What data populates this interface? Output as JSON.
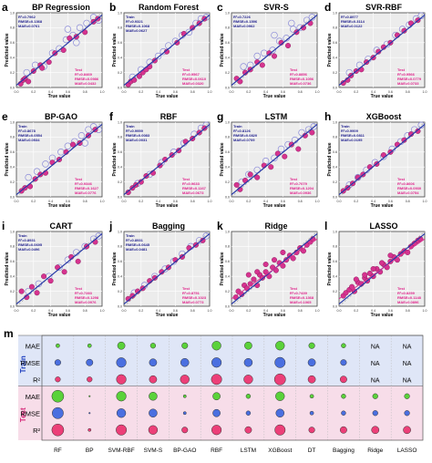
{
  "colors": {
    "test_point": "#d6338f",
    "train_point": "#8c8cd8",
    "fit_line": "#2638a8",
    "train_text": "#1c1c8c",
    "test_text": "#e0208a",
    "panel_bg": "#ececec",
    "bubble_green": "#5ad23a",
    "bubble_blue": "#4a6fe0",
    "bubble_pink": "#ec3f78",
    "train_band": "#dfe6f7",
    "test_band": "#f7dde9",
    "band_label_train": "#1f3fbf",
    "band_label_test": "#d62a7a"
  },
  "panels": [
    {
      "letter": "a",
      "title": "BP Regression",
      "has_train": true,
      "train_stats": [
        "R²=0.7962",
        "RMSE=0.1368",
        "MAE=0.0761"
      ],
      "test_stats": [
        "Test",
        "R²=0.8469",
        "RMSE=0.0986",
        "MAE=0.0432"
      ]
    },
    {
      "letter": "b",
      "title": "Random Forest",
      "has_train": true,
      "train_stats": [
        "Train",
        "R²=0.9321",
        "RMSE=0.1068",
        "MAE=0.0627"
      ],
      "test_stats": [
        "Test",
        "R²=0.9567",
        "RMSE=0.0610",
        "MAE=0.0320"
      ]
    },
    {
      "letter": "c",
      "title": "SVR-S",
      "has_train": true,
      "train_stats": [
        "R²=0.7226",
        "RMSE=0.1596",
        "MAE=0.0962"
      ],
      "test_stats": [
        "Test",
        "R²=0.8856",
        "RMSE=0.1056",
        "MAE=0.0736"
      ]
    },
    {
      "letter": "d",
      "title": "SVR-RBF",
      "has_train": true,
      "train_stats": [
        "R²=0.8977",
        "RMSE=0.3114",
        "MAE=0.0122"
      ],
      "test_stats": [
        "Test",
        "R²=0.9566",
        "RMSE=0.0779",
        "MAE=0.0733"
      ]
    },
    {
      "letter": "e",
      "title": "BP-GAO",
      "has_train": true,
      "train_stats": [
        "Train",
        "R²=0.8678",
        "RMSE=0.0554",
        "MAE=0.0534"
      ],
      "test_stats": [
        "Test",
        "R²=0.9346",
        "RMSE=0.1627",
        "MAE=0.0776"
      ]
    },
    {
      "letter": "f",
      "title": "RBF",
      "has_train": true,
      "train_stats": [
        "Train",
        "R²=0.9959",
        "RMSE=0.0083",
        "MAE=0.0031"
      ],
      "test_stats": [
        "Test",
        "R²=0.9633",
        "RMSE=0.1167",
        "MAE=0.0673"
      ]
    },
    {
      "letter": "g",
      "title": "LSTM",
      "has_train": true,
      "train_stats": [
        "Train",
        "R²=0.8126",
        "RMSE=0.0820",
        "MAE=0.0709"
      ],
      "test_stats": [
        "Test",
        "R²=0.7079",
        "RMSE=0.1204",
        "MAE=0.0936"
      ]
    },
    {
      "letter": "h",
      "title": "XGBoost",
      "has_train": true,
      "train_stats": [
        "Train",
        "R²=0.9909",
        "RMSE=0.0811",
        "MAE=0.0195"
      ],
      "test_stats": [
        "Test",
        "R²=0.8606",
        "RMSE=0.0930",
        "MAE=0.0754"
      ]
    },
    {
      "letter": "i",
      "title": "CART",
      "has_train": true,
      "train_stats": [
        "Train",
        "R²=0.8931",
        "RMSE=0.0695",
        "MAE=0.0496"
      ],
      "test_stats": [
        "Test",
        "R²=0.7283",
        "RMSE=0.1298",
        "MAE=0.0976"
      ]
    },
    {
      "letter": "j",
      "title": "Bagging",
      "has_train": true,
      "train_stats": [
        "Train",
        "R²=0.8931",
        "RMSE=0.0645",
        "MAE=0.0481"
      ],
      "test_stats": [
        "Test",
        "R²=0.8751",
        "RMSE=0.1023",
        "MAE=0.0773"
      ]
    },
    {
      "letter": "k",
      "title": "Ridge",
      "has_train": false,
      "train_stats": [],
      "test_stats": [
        "Test",
        "R²=0.7439",
        "RMSE=0.1368",
        "MAE=0.1065"
      ]
    },
    {
      "letter": "l",
      "title": "LASSO",
      "has_train": false,
      "train_stats": [],
      "test_stats": [
        "Test",
        "R²=0.8259",
        "RMSE=0.1148",
        "MAE=0.0896"
      ]
    }
  ],
  "axes": {
    "xlabel": "True value",
    "ylabel": "Predicted value",
    "xlim": [
      0,
      1
    ],
    "ylim": [
      0,
      1
    ],
    "ticks": [
      "0.0",
      "0.2",
      "0.4",
      "0.6",
      "0.8",
      "1.0"
    ]
  },
  "chart_data": [
    {
      "type": "scatter",
      "id": "a",
      "test": {
        "x": [
          0.05,
          0.08,
          0.1,
          0.14,
          0.2,
          0.28,
          0.3,
          0.38,
          0.45,
          0.55,
          0.62,
          0.7,
          0.8,
          0.9,
          0.95
        ],
        "y": [
          0.05,
          0.1,
          0.12,
          0.08,
          0.22,
          0.3,
          0.26,
          0.34,
          0.46,
          0.5,
          0.66,
          0.68,
          0.74,
          0.88,
          0.92
        ]
      },
      "train": {
        "x": [
          0.12,
          0.22,
          0.32,
          0.42,
          0.5,
          0.58,
          0.66,
          0.74,
          0.82,
          0.9,
          0.96,
          0.6,
          0.7
        ],
        "y": [
          0.2,
          0.3,
          0.28,
          0.46,
          0.52,
          0.64,
          0.7,
          0.8,
          0.86,
          0.94,
          0.9,
          0.78,
          0.6
        ]
      }
    },
    {
      "type": "scatter",
      "id": "b",
      "test": {
        "x": [
          0.05,
          0.08,
          0.12,
          0.18,
          0.22,
          0.26,
          0.3,
          0.36,
          0.5,
          0.62,
          0.7,
          0.8,
          0.88,
          0.94
        ],
        "y": [
          0.04,
          0.08,
          0.1,
          0.15,
          0.2,
          0.24,
          0.28,
          0.36,
          0.48,
          0.6,
          0.72,
          0.8,
          0.86,
          0.92
        ]
      },
      "train": {
        "x": [
          0.1,
          0.2,
          0.3,
          0.4,
          0.46,
          0.52,
          0.6,
          0.68,
          0.76,
          0.84,
          0.9,
          0.96
        ],
        "y": [
          0.14,
          0.24,
          0.34,
          0.42,
          0.48,
          0.56,
          0.62,
          0.7,
          0.74,
          0.86,
          0.92,
          0.94
        ]
      }
    },
    {
      "type": "scatter",
      "id": "c",
      "test": {
        "x": [
          0.06,
          0.1,
          0.16,
          0.22,
          0.3,
          0.36,
          0.44,
          0.5,
          0.58,
          0.66,
          0.76,
          0.84,
          0.92
        ],
        "y": [
          0.12,
          0.08,
          0.2,
          0.24,
          0.34,
          0.3,
          0.46,
          0.42,
          0.6,
          0.56,
          0.74,
          0.8,
          0.86
        ]
      },
      "train": {
        "x": [
          0.14,
          0.22,
          0.3,
          0.38,
          0.48,
          0.56,
          0.64,
          0.72,
          0.8,
          0.88,
          0.94,
          0.5,
          0.7
        ],
        "y": [
          0.28,
          0.3,
          0.42,
          0.46,
          0.5,
          0.62,
          0.66,
          0.78,
          0.8,
          0.9,
          0.94,
          0.7,
          0.86
        ]
      }
    },
    {
      "type": "scatter",
      "id": "d",
      "test": {
        "x": [
          0.05,
          0.1,
          0.14,
          0.2,
          0.26,
          0.32,
          0.4,
          0.46,
          0.52,
          0.6,
          0.68,
          0.76,
          0.84,
          0.92
        ],
        "y": [
          0.06,
          0.1,
          0.16,
          0.22,
          0.24,
          0.34,
          0.4,
          0.48,
          0.54,
          0.6,
          0.7,
          0.76,
          0.86,
          0.9
        ]
      },
      "train": {
        "x": [
          0.12,
          0.24,
          0.34,
          0.44,
          0.56,
          0.66,
          0.74,
          0.82,
          0.9,
          0.96
        ],
        "y": [
          0.2,
          0.3,
          0.38,
          0.5,
          0.58,
          0.7,
          0.78,
          0.84,
          0.92,
          0.96
        ]
      }
    },
    {
      "type": "scatter",
      "id": "e",
      "test": {
        "x": [
          0.06,
          0.1,
          0.16,
          0.22,
          0.28,
          0.34,
          0.42,
          0.5,
          0.58,
          0.66,
          0.74,
          0.84,
          0.92
        ],
        "y": [
          0.08,
          0.12,
          0.14,
          0.24,
          0.3,
          0.32,
          0.46,
          0.5,
          0.6,
          0.7,
          0.72,
          0.82,
          0.9
        ]
      },
      "train": {
        "x": [
          0.14,
          0.24,
          0.34,
          0.42,
          0.52,
          0.6,
          0.68,
          0.76,
          0.84,
          0.9,
          0.96,
          0.8
        ],
        "y": [
          0.26,
          0.34,
          0.44,
          0.52,
          0.6,
          0.68,
          0.74,
          0.82,
          0.9,
          0.94,
          0.9,
          0.72
        ]
      }
    },
    {
      "type": "scatter",
      "id": "f",
      "test": {
        "x": [
          0.05,
          0.1,
          0.14,
          0.2,
          0.26,
          0.34,
          0.42,
          0.48,
          0.56,
          0.64,
          0.72,
          0.8,
          0.88,
          0.94
        ],
        "y": [
          0.06,
          0.12,
          0.16,
          0.2,
          0.28,
          0.32,
          0.42,
          0.5,
          0.56,
          0.62,
          0.74,
          0.78,
          0.86,
          0.92
        ]
      },
      "train": {
        "x": [
          0.16,
          0.3,
          0.44,
          0.58,
          0.7,
          0.82,
          0.9,
          0.96
        ],
        "y": [
          0.18,
          0.3,
          0.46,
          0.6,
          0.72,
          0.84,
          0.92,
          0.96
        ]
      }
    },
    {
      "type": "scatter",
      "id": "g",
      "test": {
        "x": [
          0.06,
          0.1,
          0.16,
          0.22,
          0.3,
          0.38,
          0.46,
          0.54,
          0.62,
          0.7,
          0.78,
          0.86,
          0.94
        ],
        "y": [
          0.16,
          0.1,
          0.22,
          0.3,
          0.26,
          0.42,
          0.4,
          0.58,
          0.54,
          0.7,
          0.64,
          0.82,
          0.86
        ]
      },
      "train": {
        "x": [
          0.12,
          0.2,
          0.3,
          0.4,
          0.5,
          0.58,
          0.66,
          0.74,
          0.82,
          0.9,
          0.96
        ],
        "y": [
          0.2,
          0.3,
          0.36,
          0.48,
          0.52,
          0.64,
          0.7,
          0.76,
          0.86,
          0.9,
          0.94
        ]
      }
    },
    {
      "type": "scatter",
      "id": "h",
      "test": {
        "x": [
          0.05,
          0.1,
          0.16,
          0.22,
          0.28,
          0.36,
          0.44,
          0.52,
          0.6,
          0.68,
          0.76,
          0.84,
          0.92
        ],
        "y": [
          0.08,
          0.12,
          0.18,
          0.26,
          0.3,
          0.4,
          0.44,
          0.56,
          0.6,
          0.7,
          0.76,
          0.84,
          0.88
        ]
      },
      "train": {
        "x": [
          0.12,
          0.22,
          0.32,
          0.42,
          0.52,
          0.62,
          0.72,
          0.8,
          0.88,
          0.96
        ],
        "y": [
          0.16,
          0.26,
          0.36,
          0.46,
          0.54,
          0.64,
          0.74,
          0.82,
          0.9,
          0.96
        ]
      }
    },
    {
      "type": "scatter",
      "id": "i",
      "test": {
        "x": [
          0.06,
          0.12,
          0.18,
          0.24,
          0.32,
          0.4,
          0.48,
          0.56,
          0.64,
          0.72,
          0.82,
          0.92
        ],
        "y": [
          0.2,
          0.12,
          0.26,
          0.18,
          0.4,
          0.34,
          0.52,
          0.46,
          0.66,
          0.6,
          0.8,
          0.86
        ]
      },
      "train": {
        "x": [
          0.14,
          0.26,
          0.38,
          0.5,
          0.6,
          0.7,
          0.8,
          0.9,
          0.96
        ],
        "y": [
          0.2,
          0.3,
          0.4,
          0.52,
          0.62,
          0.72,
          0.8,
          0.9,
          0.94
        ]
      }
    },
    {
      "type": "scatter",
      "id": "j",
      "test": {
        "x": [
          0.05,
          0.1,
          0.16,
          0.22,
          0.3,
          0.36,
          0.44,
          0.52,
          0.6,
          0.68,
          0.76,
          0.84,
          0.92
        ],
        "y": [
          0.1,
          0.14,
          0.2,
          0.24,
          0.34,
          0.38,
          0.46,
          0.52,
          0.62,
          0.66,
          0.78,
          0.82,
          0.88
        ]
      },
      "train": {
        "x": [
          0.12,
          0.24,
          0.36,
          0.48,
          0.58,
          0.68,
          0.78,
          0.88,
          0.96
        ],
        "y": [
          0.18,
          0.28,
          0.4,
          0.5,
          0.6,
          0.7,
          0.8,
          0.88,
          0.94
        ]
      }
    },
    {
      "type": "scatter",
      "id": "k",
      "test": {
        "x": [
          0.05,
          0.08,
          0.12,
          0.15,
          0.18,
          0.22,
          0.26,
          0.3,
          0.33,
          0.36,
          0.4,
          0.44,
          0.48,
          0.52,
          0.56,
          0.6,
          0.64,
          0.68,
          0.72,
          0.76,
          0.8,
          0.84,
          0.88,
          0.92,
          0.95,
          0.2,
          0.4,
          0.6,
          0.3,
          0.5
        ],
        "y": [
          0.12,
          0.2,
          0.16,
          0.28,
          0.24,
          0.3,
          0.36,
          0.28,
          0.42,
          0.38,
          0.46,
          0.4,
          0.52,
          0.48,
          0.58,
          0.54,
          0.62,
          0.68,
          0.64,
          0.72,
          0.78,
          0.74,
          0.82,
          0.86,
          0.9,
          0.42,
          0.56,
          0.72,
          0.46,
          0.62
        ]
      }
    },
    {
      "type": "scatter",
      "id": "l",
      "test": {
        "x": [
          0.05,
          0.08,
          0.12,
          0.15,
          0.18,
          0.22,
          0.26,
          0.3,
          0.33,
          0.36,
          0.4,
          0.44,
          0.48,
          0.52,
          0.56,
          0.6,
          0.64,
          0.68,
          0.72,
          0.76,
          0.8,
          0.84,
          0.88,
          0.92,
          0.95,
          0.2,
          0.4,
          0.6,
          0.3,
          0.5
        ],
        "y": [
          0.14,
          0.18,
          0.22,
          0.26,
          0.2,
          0.32,
          0.3,
          0.38,
          0.34,
          0.44,
          0.4,
          0.5,
          0.46,
          0.56,
          0.52,
          0.6,
          0.66,
          0.62,
          0.7,
          0.74,
          0.72,
          0.8,
          0.84,
          0.88,
          0.9,
          0.36,
          0.5,
          0.68,
          0.42,
          0.58
        ]
      }
    },
    {
      "type": "bubble",
      "id": "m",
      "models": [
        "RF",
        "BP",
        "SVM-RBF",
        "SVM-S",
        "BP-GAO",
        "RBF",
        "LSTM",
        "XGBoost",
        "DT",
        "Bagging",
        "Ridge",
        "LASSO"
      ],
      "groups": [
        {
          "label": "Train",
          "rows": [
            {
              "metric": "MAE",
              "color": "green",
              "sizes": [
                0.25,
                0.25,
                0.5,
                0.35,
                0.4,
                0.6,
                0.5,
                0.6,
                0.4,
                0.3,
                null,
                null
              ]
            },
            {
              "metric": "RMSE",
              "color": "blue",
              "sizes": [
                0.4,
                0.45,
                0.65,
                0.5,
                0.55,
                0.65,
                0.55,
                0.7,
                0.5,
                0.4,
                null,
                null
              ]
            },
            {
              "metric": "R²",
              "color": "pink",
              "sizes": [
                0.35,
                0.35,
                0.65,
                0.5,
                0.6,
                0.7,
                0.6,
                0.75,
                0.5,
                0.45,
                null,
                null
              ]
            }
          ]
        },
        {
          "label": "Test",
          "rows": [
            {
              "metric": "MAE",
              "color": "green",
              "sizes": [
                0.8,
                0.1,
                0.65,
                0.55,
                0.2,
                0.5,
                0.3,
                0.6,
                0.25,
                0.3,
                0.35,
                0.35
              ]
            },
            {
              "metric": "RMSE",
              "color": "blue",
              "sizes": [
                0.75,
                0.1,
                0.6,
                0.55,
                0.2,
                0.5,
                0.3,
                0.55,
                0.25,
                0.3,
                0.35,
                0.35
              ]
            },
            {
              "metric": "R²",
              "color": "pink",
              "sizes": [
                0.8,
                0.2,
                0.7,
                0.6,
                0.4,
                0.65,
                0.45,
                0.7,
                0.4,
                0.45,
                0.5,
                0.5
              ]
            }
          ]
        }
      ],
      "na_label": "NA"
    }
  ]
}
